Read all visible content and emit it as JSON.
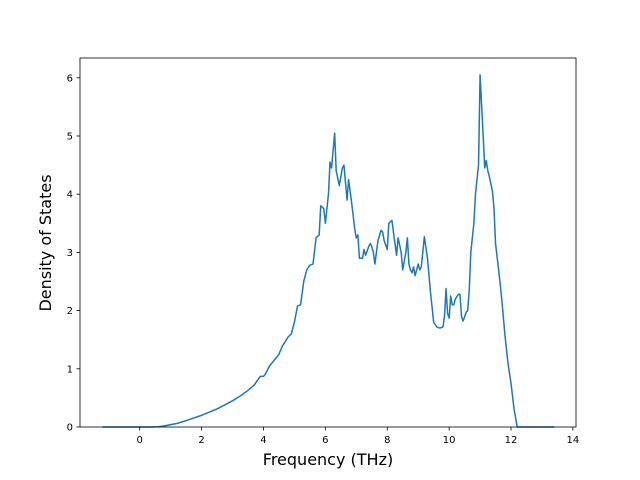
{
  "chart_data": {
    "type": "line",
    "xlabel": "Frequency (THz)",
    "ylabel": "Density of States",
    "xlim": [
      -1.93,
      14.1
    ],
    "ylim": [
      0,
      6.34
    ],
    "xticks": [
      0,
      2,
      4,
      6,
      8,
      10,
      12,
      14
    ],
    "yticks": [
      0,
      1,
      2,
      3,
      4,
      5,
      6
    ],
    "series": [
      {
        "color": "#1f77b4",
        "x": [
          -1.2,
          0.0,
          0.4,
          0.6,
          0.8,
          1.0,
          1.2,
          1.5,
          2.0,
          2.5,
          3.0,
          3.3,
          3.5,
          3.7,
          3.8,
          3.9,
          4.0,
          4.05,
          4.2,
          4.5,
          4.6,
          4.8,
          4.9,
          5.0,
          5.1,
          5.2,
          5.3,
          5.4,
          5.5,
          5.6,
          5.7,
          5.8,
          5.85,
          5.95,
          6.0,
          6.1,
          6.15,
          6.2,
          6.3,
          6.35,
          6.45,
          6.55,
          6.6,
          6.7,
          6.75,
          6.85,
          6.95,
          7.0,
          7.05,
          7.1,
          7.2,
          7.25,
          7.3,
          7.4,
          7.45,
          7.5,
          7.55,
          7.6,
          7.7,
          7.8,
          7.85,
          7.9,
          8.0,
          8.05,
          8.15,
          8.2,
          8.3,
          8.35,
          8.45,
          8.5,
          8.6,
          8.65,
          8.7,
          8.75,
          8.8,
          8.85,
          8.9,
          9.0,
          9.05,
          9.1,
          9.2,
          9.3,
          9.4,
          9.5,
          9.6,
          9.7,
          9.8,
          9.85,
          9.9,
          9.95,
          10.0,
          10.05,
          10.1,
          10.15,
          10.2,
          10.3,
          10.35,
          10.4,
          10.45,
          10.55,
          10.6,
          10.65,
          10.7,
          10.8,
          10.85,
          10.95,
          11.0,
          11.1,
          11.15,
          11.2,
          11.25,
          11.3,
          11.4,
          11.45,
          11.5,
          11.6,
          11.7,
          11.8,
          11.9,
          12.0,
          12.1,
          12.2,
          13.4
        ],
        "values": [
          0,
          0,
          0,
          0.005,
          0.02,
          0.04,
          0.06,
          0.11,
          0.2,
          0.31,
          0.45,
          0.55,
          0.63,
          0.72,
          0.8,
          0.87,
          0.87,
          0.9,
          1.05,
          1.25,
          1.38,
          1.55,
          1.6,
          1.8,
          2.08,
          2.1,
          2.5,
          2.7,
          2.78,
          2.8,
          3.25,
          3.3,
          3.8,
          3.75,
          3.5,
          4.0,
          4.55,
          4.45,
          5.05,
          4.4,
          4.15,
          4.45,
          4.5,
          3.9,
          4.25,
          3.85,
          3.4,
          3.25,
          3.3,
          2.9,
          2.9,
          3.05,
          2.95,
          3.1,
          3.15,
          3.1,
          3.0,
          2.8,
          3.2,
          3.38,
          3.35,
          3.2,
          3.05,
          3.5,
          3.55,
          3.35,
          2.95,
          3.25,
          3.0,
          2.7,
          3.0,
          3.25,
          2.8,
          2.7,
          2.65,
          2.75,
          2.6,
          2.8,
          2.7,
          2.75,
          3.27,
          2.9,
          2.3,
          1.8,
          1.72,
          1.7,
          1.72,
          1.9,
          2.38,
          1.95,
          1.87,
          2.25,
          2.1,
          2.1,
          2.2,
          2.28,
          2.28,
          1.9,
          1.82,
          1.97,
          2.0,
          2.35,
          3.0,
          3.5,
          4.0,
          4.5,
          6.05,
          5.0,
          4.45,
          4.58,
          4.4,
          4.3,
          4.05,
          3.75,
          3.15,
          2.7,
          2.2,
          1.6,
          1.1,
          0.75,
          0.3,
          0,
          0
        ]
      }
    ]
  }
}
